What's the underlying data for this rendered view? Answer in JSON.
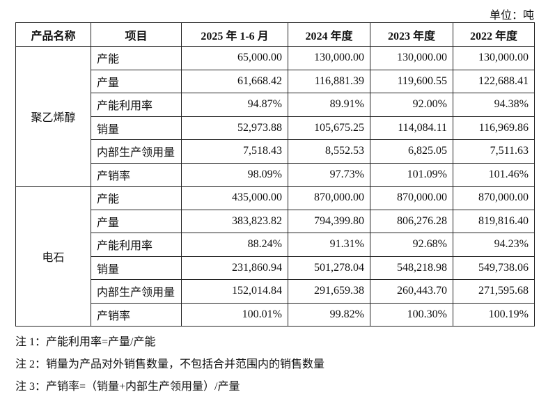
{
  "unit": "单位：吨",
  "table": {
    "header": [
      "产品名称",
      "项目",
      "2025 年 1-6 月",
      "2024 年度",
      "2023 年度",
      "2022 年度"
    ],
    "groups": [
      {
        "name": "聚乙烯醇",
        "rows": [
          [
            "产能",
            "65,000.00",
            "130,000.00",
            "130,000.00",
            "130,000.00"
          ],
          [
            "产量",
            "61,668.42",
            "116,881.39",
            "119,600.55",
            "122,688.41"
          ],
          [
            "产能利用率",
            "94.87%",
            "89.91%",
            "92.00%",
            "94.38%"
          ],
          [
            "销量",
            "52,973.88",
            "105,675.25",
            "114,084.11",
            "116,969.86"
          ],
          [
            "内部生产领用量",
            "7,518.43",
            "8,552.53",
            "6,825.05",
            "7,511.63"
          ],
          [
            "产销率",
            "98.09%",
            "97.73%",
            "101.09%",
            "101.46%"
          ]
        ]
      },
      {
        "name": "电石",
        "rows": [
          [
            "产能",
            "435,000.00",
            "870,000.00",
            "870,000.00",
            "870,000.00"
          ],
          [
            "产量",
            "383,823.82",
            "794,399.80",
            "806,276.28",
            "819,816.40"
          ],
          [
            "产能利用率",
            "88.24%",
            "91.31%",
            "92.68%",
            "94.23%"
          ],
          [
            "销量",
            "231,860.94",
            "501,278.04",
            "548,218.98",
            "549,738.06"
          ],
          [
            "内部生产领用量",
            "152,014.84",
            "291,659.38",
            "260,443.70",
            "271,595.68"
          ],
          [
            "产销率",
            "100.01%",
            "99.82%",
            "100.30%",
            "100.19%"
          ]
        ]
      }
    ]
  },
  "notes": [
    "注 1：产能利用率=产量/产能",
    "注 2：销量为产品对外销售数量，不包括合并范围内的销售数量",
    "注 3：产销率=（销量+内部生产领用量）/产量"
  ]
}
